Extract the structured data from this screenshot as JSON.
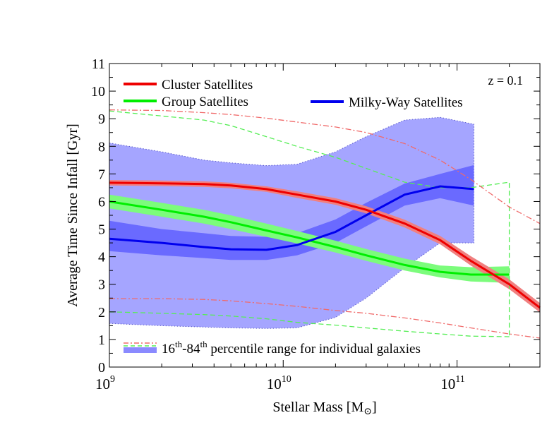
{
  "chart_data": {
    "type": "line",
    "xscale": "log",
    "xlim": [
      1000000000,
      300000000000
    ],
    "ylim": [
      0,
      11
    ],
    "xlabel": "Stellar Mass [M",
    "xlabel_sub": "⊙",
    "xlabel_end": "]",
    "ylabel": "Average Time Since Infall [Gyr]",
    "x_ticks": [
      {
        "value": 1000000000,
        "base": "10",
        "exp": "9"
      },
      {
        "value": 10000000000,
        "base": "10",
        "exp": "10"
      },
      {
        "value": 100000000000,
        "base": "10",
        "exp": "11"
      }
    ],
    "y_ticks": [
      "0",
      "1",
      "2",
      "3",
      "4",
      "5",
      "6",
      "7",
      "8",
      "9",
      "10",
      "11"
    ],
    "annotation": "z = 0.1",
    "legend": {
      "placement": "top",
      "items": [
        {
          "label": "Cluster Satellites",
          "color": "#ee0000"
        },
        {
          "label": "Group Satellites",
          "color": "#00ee00"
        },
        {
          "label": "Milky-Way Satellites",
          "color": "#0000ee"
        }
      ],
      "percentile_label_pre": "16",
      "percentile_sup1": "th",
      "percentile_mid": "-84",
      "percentile_sup2": "th",
      "percentile_label_post": " percentile range for individual galaxies"
    },
    "colors": {
      "cluster": "#ee0000",
      "cluster_band": "#f08080",
      "group": "#00ee00",
      "group_band": "#7cfc7c",
      "mw": "#0000ee",
      "mw_band": "#6a6aff",
      "mw_outer": "#a0a0ff"
    },
    "series": [
      {
        "name": "Cluster Satellites",
        "x": [
          1000000000,
          2000000000,
          3500000000,
          5000000000,
          8000000000,
          12000000000,
          20000000000,
          30000000000,
          50000000000,
          80000000000,
          120000000000,
          200000000000,
          300000000000
        ],
        "mean": [
          6.68,
          6.66,
          6.63,
          6.58,
          6.45,
          6.25,
          6.0,
          5.7,
          5.2,
          4.6,
          3.85,
          3.0,
          2.15
        ],
        "band_low": [
          6.58,
          6.56,
          6.53,
          6.48,
          6.35,
          6.13,
          5.88,
          5.57,
          5.06,
          4.45,
          3.68,
          2.82,
          1.98
        ],
        "band_high": [
          6.78,
          6.76,
          6.73,
          6.68,
          6.55,
          6.37,
          6.12,
          5.83,
          5.34,
          4.75,
          4.02,
          3.18,
          2.32
        ],
        "p16": [
          2.48,
          2.48,
          2.45,
          2.4,
          2.3,
          2.2,
          2.05,
          1.95,
          1.78,
          1.6,
          1.42,
          1.2,
          1.05
        ],
        "p84": [
          9.32,
          9.3,
          9.22,
          9.15,
          9.02,
          8.88,
          8.7,
          8.5,
          8.1,
          7.5,
          6.8,
          5.8,
          5.2
        ]
      },
      {
        "name": "Group Satellites",
        "x": [
          1000000000,
          2000000000,
          3500000000,
          5000000000,
          8000000000,
          12000000000,
          20000000000,
          30000000000,
          50000000000,
          80000000000,
          120000000000,
          200000000000
        ],
        "mean": [
          6.0,
          5.7,
          5.45,
          5.25,
          4.95,
          4.7,
          4.35,
          4.05,
          3.7,
          3.45,
          3.35,
          3.35
        ],
        "band_low": [
          5.75,
          5.45,
          5.2,
          5.0,
          4.72,
          4.48,
          4.15,
          3.85,
          3.5,
          3.25,
          3.1,
          3.05
        ],
        "band_high": [
          6.25,
          5.95,
          5.7,
          5.5,
          5.2,
          4.93,
          4.58,
          4.28,
          3.93,
          3.68,
          3.62,
          3.65
        ],
        "p16": [
          2.0,
          1.95,
          1.9,
          1.85,
          1.75,
          1.62,
          1.52,
          1.42,
          1.3,
          1.2,
          1.12,
          1.1
        ],
        "p84": [
          9.28,
          9.1,
          8.95,
          8.75,
          8.35,
          8.0,
          7.6,
          7.2,
          6.7,
          6.5,
          6.5,
          6.7
        ]
      },
      {
        "name": "Milky-Way Satellites",
        "x": [
          1000000000,
          2000000000,
          3500000000,
          5000000000,
          8000000000,
          12000000000,
          20000000000,
          30000000000,
          50000000000,
          80000000000,
          125000000000
        ],
        "mean": [
          4.65,
          4.5,
          4.35,
          4.27,
          4.25,
          4.42,
          4.9,
          5.5,
          6.25,
          6.55,
          6.45
        ],
        "band_low": [
          4.2,
          4.05,
          3.95,
          3.88,
          3.88,
          4.05,
          4.5,
          5.1,
          5.85,
          6.12,
          5.85
        ],
        "band_high": [
          5.3,
          5.0,
          4.85,
          4.75,
          4.72,
          4.85,
          5.35,
          5.95,
          6.65,
          7.0,
          7.32
        ],
        "p16": [
          1.58,
          1.5,
          1.45,
          1.42,
          1.4,
          1.42,
          1.8,
          2.5,
          3.6,
          4.5,
          4.5
        ],
        "p84": [
          8.12,
          7.8,
          7.5,
          7.4,
          7.3,
          7.35,
          7.8,
          8.35,
          8.95,
          9.05,
          8.8
        ]
      }
    ]
  }
}
